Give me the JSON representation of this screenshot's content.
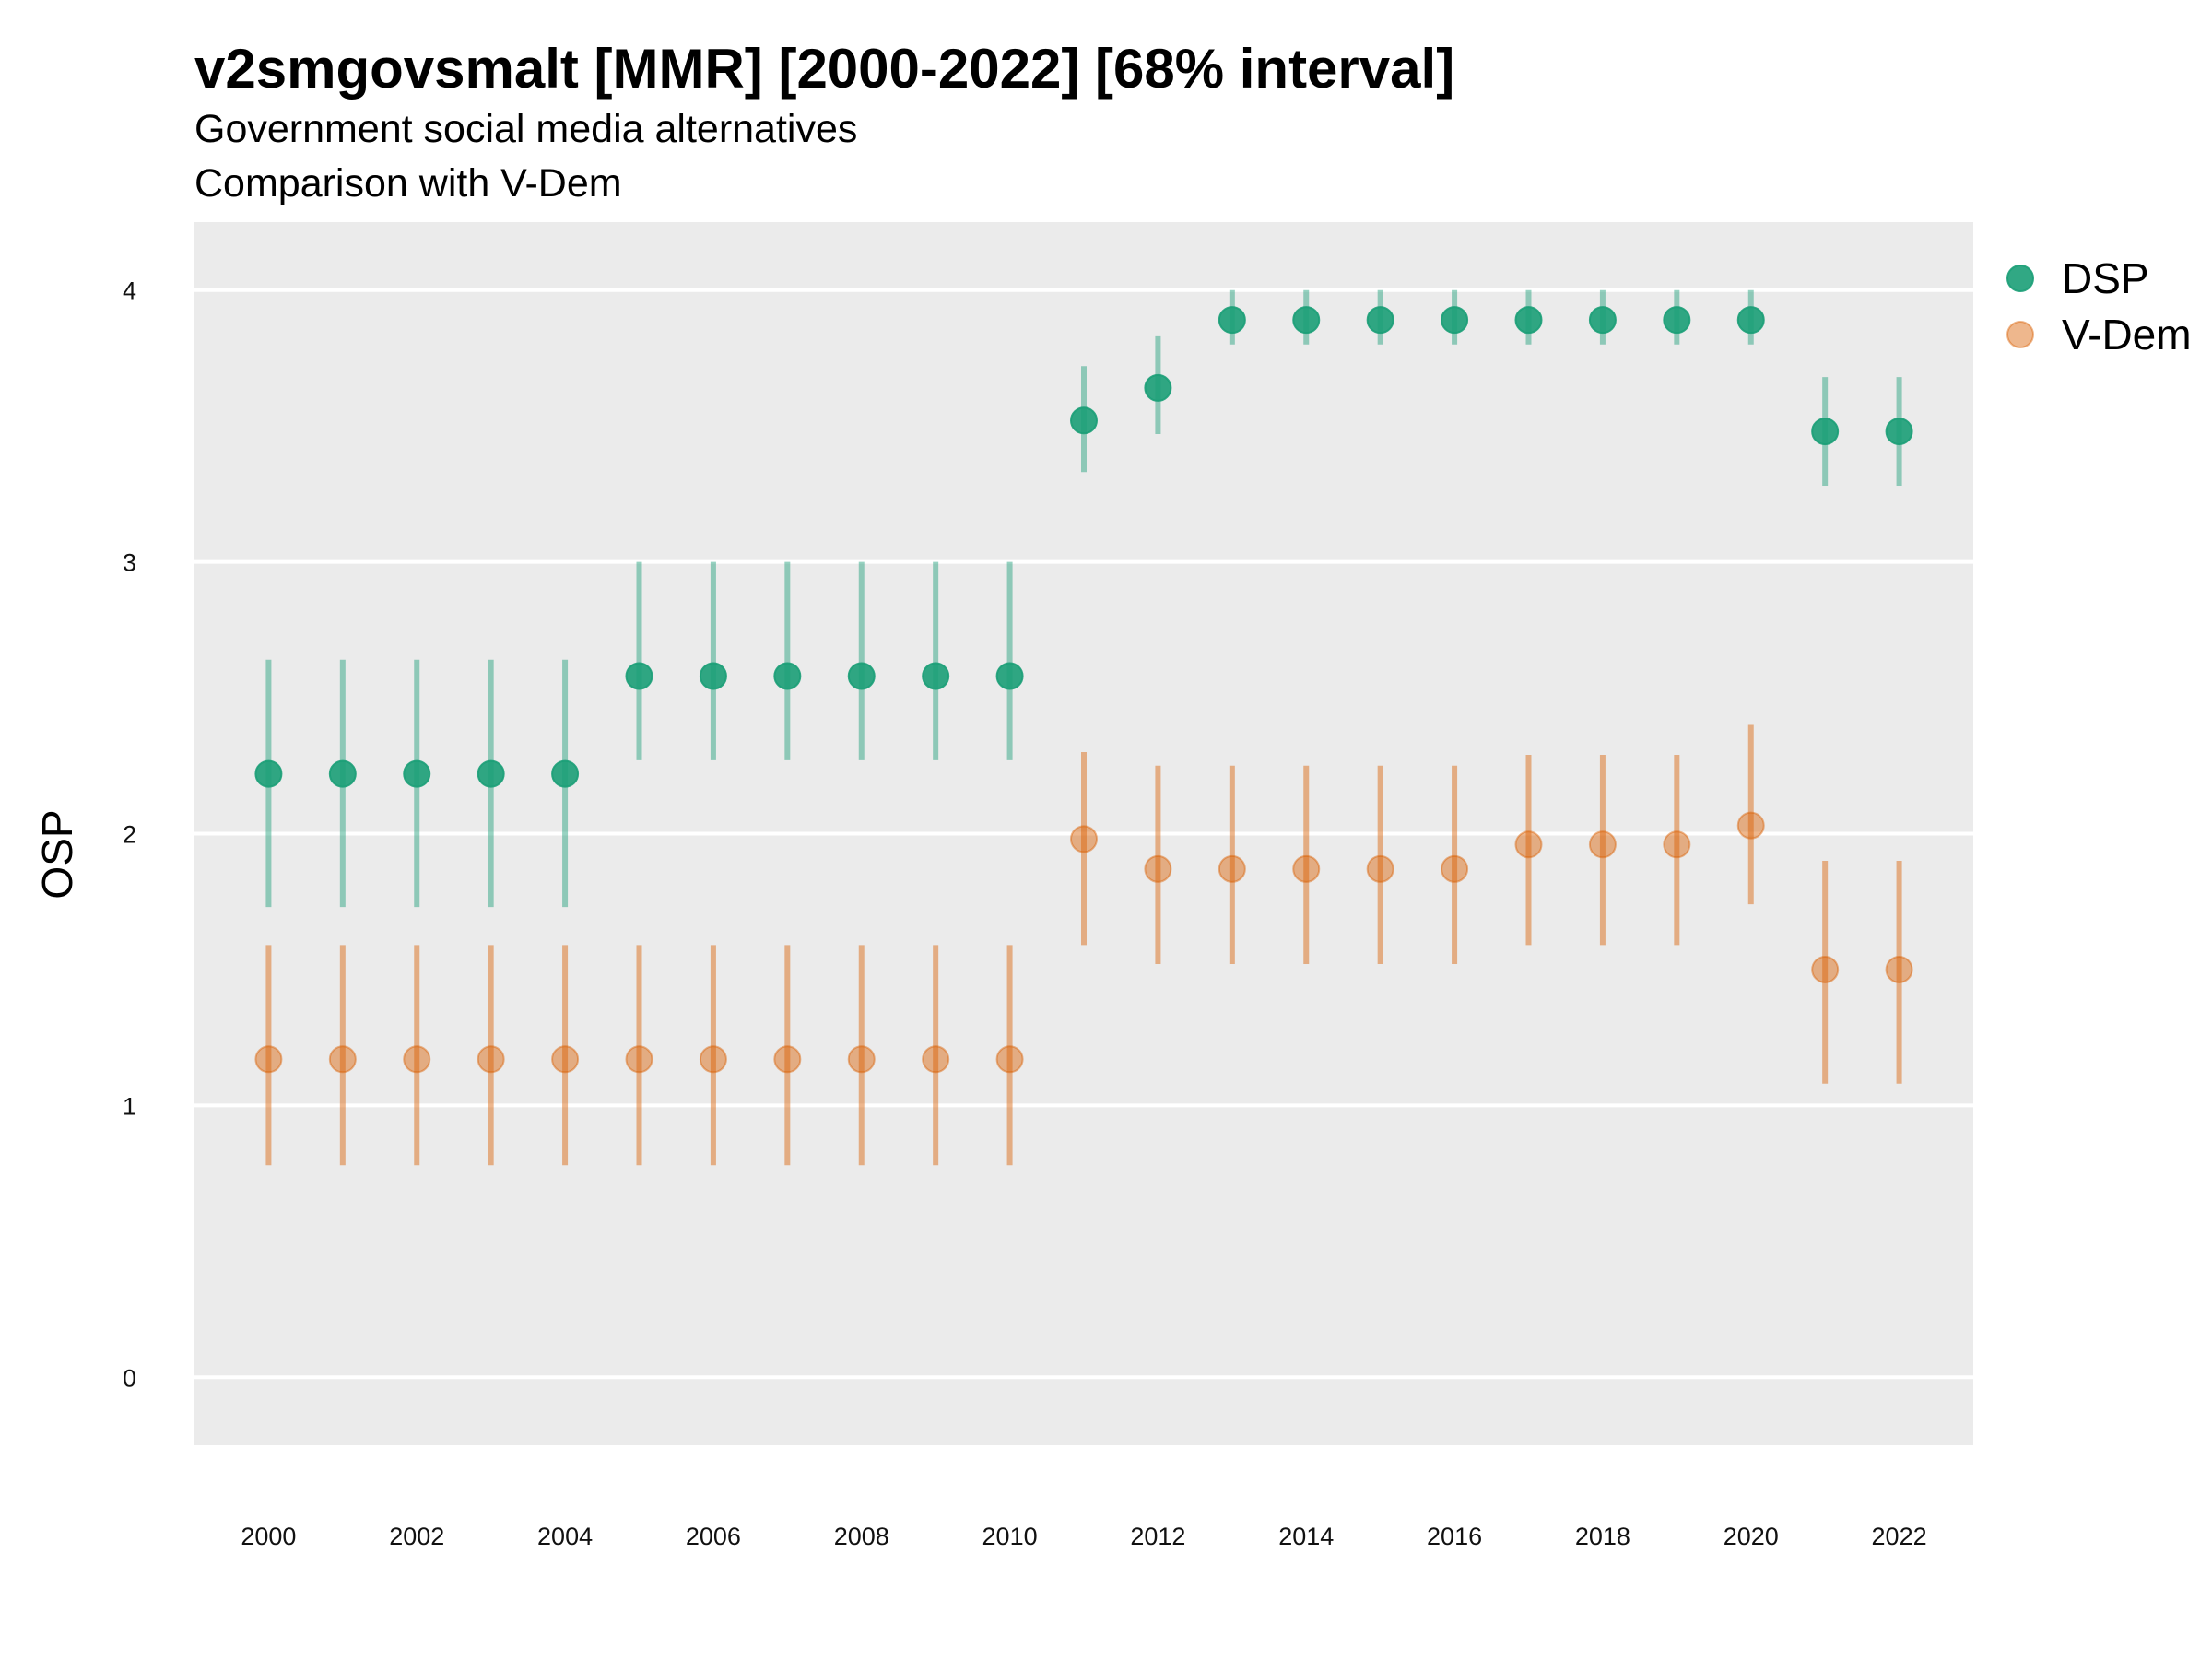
{
  "chart_data": {
    "type": "scatter",
    "title": "v2smgovsmalt [MMR] [2000-2022] [68% interval]",
    "subtitle_lines": [
      "Government social media alternatives",
      "Comparison with V-Dem"
    ],
    "xlabel": "",
    "ylabel": "OSP",
    "x": [
      2000,
      2001,
      2002,
      2003,
      2004,
      2005,
      2006,
      2007,
      2008,
      2009,
      2010,
      2011,
      2012,
      2013,
      2014,
      2015,
      2016,
      2017,
      2018,
      2019,
      2020,
      2021,
      2022
    ],
    "x_ticks": [
      "2000",
      "2002",
      "2004",
      "2006",
      "2008",
      "2010",
      "2012",
      "2014",
      "2016",
      "2018",
      "2020",
      "2022"
    ],
    "y_ticks": [
      "0",
      "1",
      "2",
      "3",
      "4"
    ],
    "ylim": [
      -0.25,
      4.25
    ],
    "xlim": [
      1999,
      2023
    ],
    "grid": true,
    "legend_position": "right",
    "series": [
      {
        "name": "DSP",
        "color": "#1b9e77",
        "values": [
          2.22,
          2.22,
          2.22,
          2.22,
          2.22,
          2.58,
          2.58,
          2.58,
          2.58,
          2.58,
          2.58,
          3.52,
          3.64,
          3.89,
          3.89,
          3.89,
          3.89,
          3.89,
          3.89,
          3.89,
          3.89,
          3.48,
          3.48
        ],
        "lower": [
          1.73,
          1.73,
          1.73,
          1.73,
          1.73,
          2.27,
          2.27,
          2.27,
          2.27,
          2.27,
          2.27,
          3.33,
          3.47,
          3.8,
          3.8,
          3.8,
          3.8,
          3.8,
          3.8,
          3.8,
          3.8,
          3.28,
          3.28
        ],
        "upper": [
          2.64,
          2.64,
          2.64,
          2.64,
          2.64,
          3.0,
          3.0,
          3.0,
          3.0,
          3.0,
          3.0,
          3.72,
          3.83,
          4.0,
          4.0,
          4.0,
          4.0,
          4.0,
          4.0,
          4.0,
          4.0,
          3.68,
          3.68
        ]
      },
      {
        "name": "V-Dem",
        "color": "#d95f02",
        "values": [
          1.17,
          1.17,
          1.17,
          1.17,
          1.17,
          1.17,
          1.17,
          1.17,
          1.17,
          1.17,
          1.17,
          1.98,
          1.87,
          1.87,
          1.87,
          1.87,
          1.87,
          1.96,
          1.96,
          1.96,
          2.03,
          1.5,
          1.5
        ],
        "lower": [
          0.78,
          0.78,
          0.78,
          0.78,
          0.78,
          0.78,
          0.78,
          0.78,
          0.78,
          0.78,
          0.78,
          1.59,
          1.52,
          1.52,
          1.52,
          1.52,
          1.52,
          1.59,
          1.59,
          1.59,
          1.74,
          1.08,
          1.08
        ],
        "upper": [
          1.59,
          1.59,
          1.59,
          1.59,
          1.59,
          1.59,
          1.59,
          1.59,
          1.59,
          1.59,
          1.59,
          2.3,
          2.25,
          2.25,
          2.25,
          2.25,
          2.25,
          2.29,
          2.29,
          2.29,
          2.4,
          1.9,
          1.9
        ]
      }
    ]
  }
}
